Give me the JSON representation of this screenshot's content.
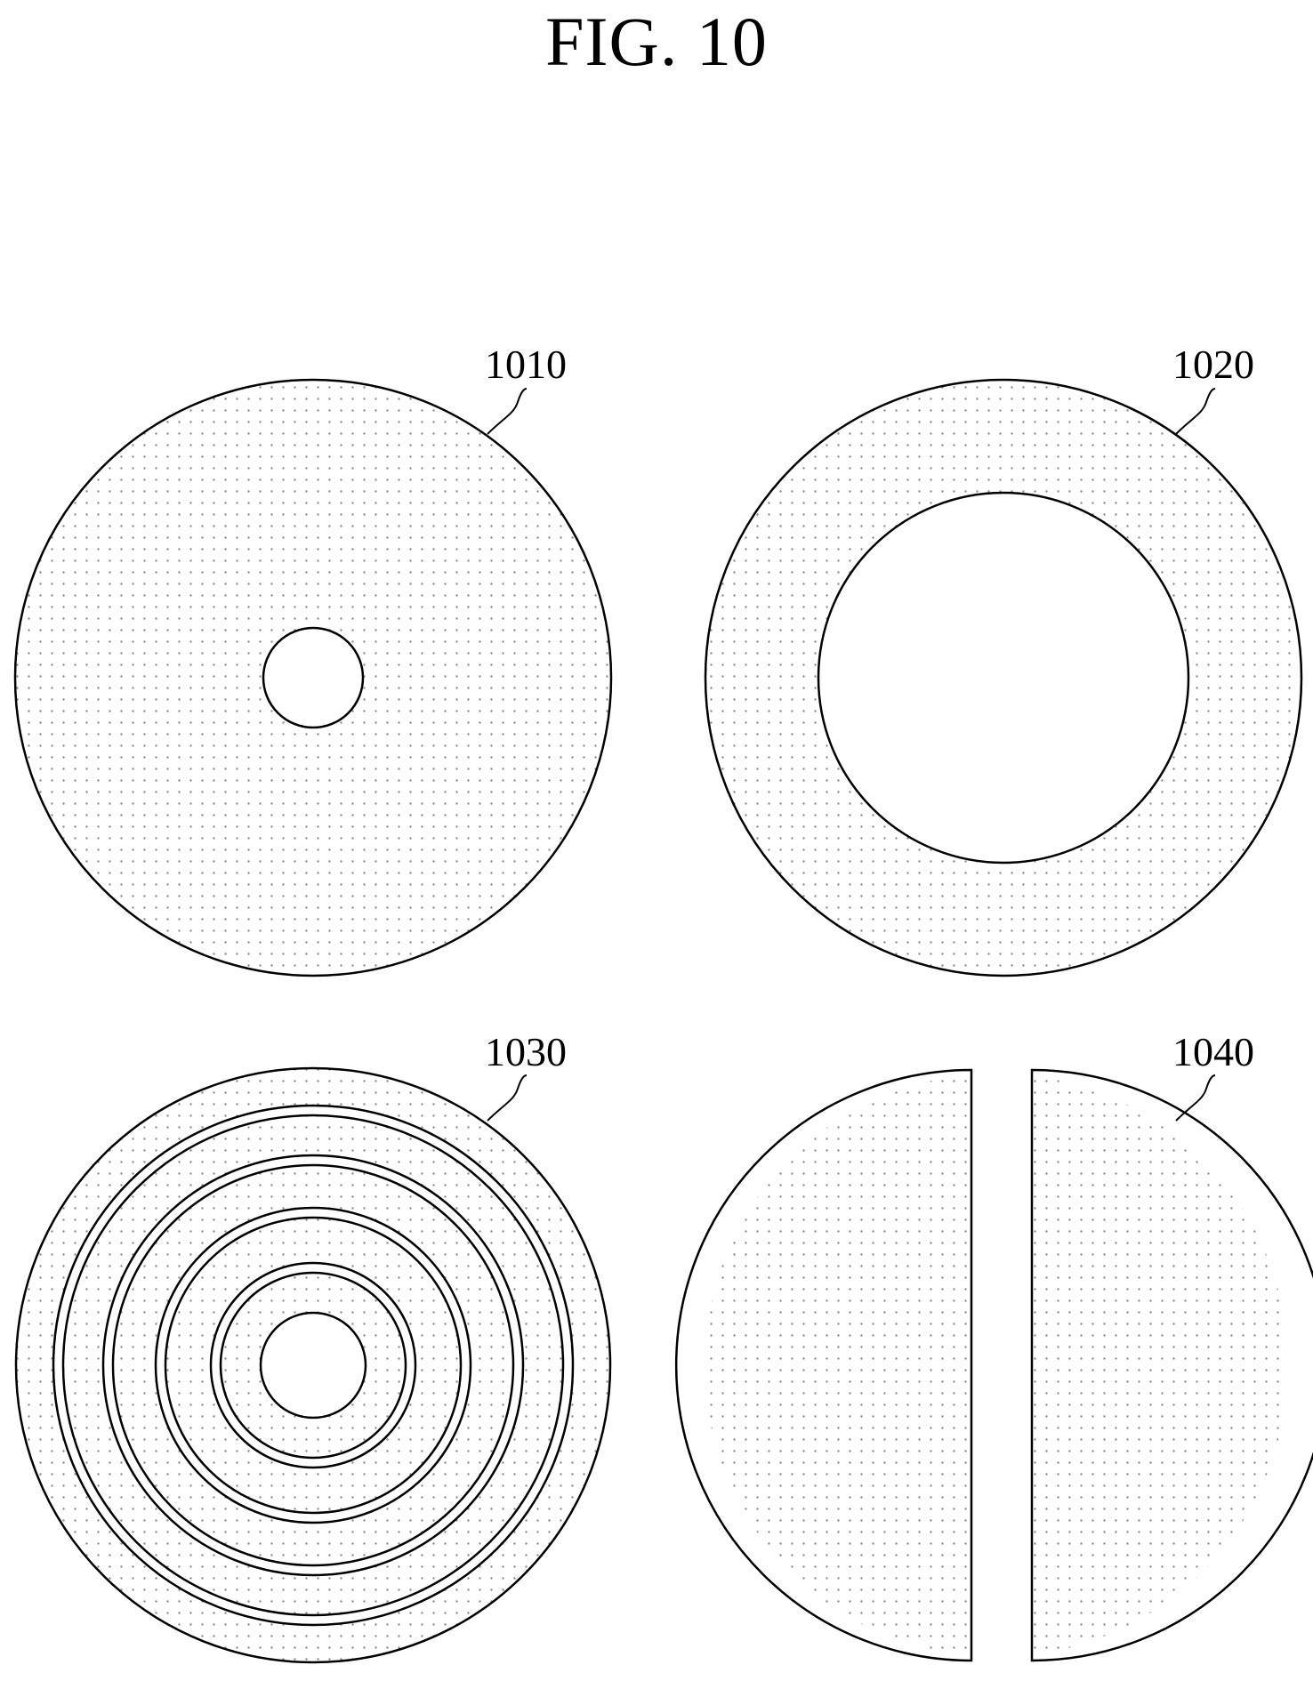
{
  "figure": {
    "title": "FIG. 10"
  },
  "panels": [
    {
      "key": "p1010",
      "label": "1010",
      "kind": "disk-with-small-hole"
    },
    {
      "key": "p1020",
      "label": "1020",
      "kind": "annulus-large-hole"
    },
    {
      "key": "p1030",
      "label": "1030",
      "kind": "concentric-ring-segments"
    },
    {
      "key": "p1040",
      "label": "1040",
      "kind": "split-halves"
    }
  ],
  "colors": {
    "line": "#000000",
    "dot": "#8a8a8a",
    "background": "#ffffff"
  }
}
